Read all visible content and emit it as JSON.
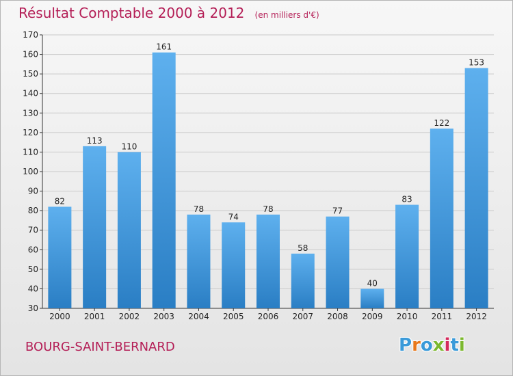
{
  "header": {
    "title": "Résultat Comptable 2000 à 2012",
    "subtitle": "(en milliers d'€)"
  },
  "footer": {
    "commune": "BOURG-SAINT-BERNARD",
    "logo_letters": [
      "P",
      "r",
      "o",
      "x",
      "i",
      "t",
      "i"
    ],
    "logo_colors": [
      "#3a9ad9",
      "#e8771a",
      "#3a9ad9",
      "#7cb82f",
      "#d42a5c",
      "#3a9ad9",
      "#7cb82f"
    ]
  },
  "colors": {
    "title": "#b41e56",
    "bar_top": "#5eb0ee",
    "bar_bottom": "#2a7ec4",
    "grid": "#c9c9c9"
  },
  "chart_data": {
    "type": "bar",
    "title": "Résultat Comptable 2000 à 2012",
    "subtitle": "(en milliers d'€)",
    "categories": [
      "2000",
      "2001",
      "2002",
      "2003",
      "2004",
      "2005",
      "2006",
      "2007",
      "2008",
      "2009",
      "2010",
      "2011",
      "2012"
    ],
    "values": [
      82,
      113,
      110,
      161,
      78,
      74,
      78,
      58,
      77,
      40,
      83,
      122,
      153
    ],
    "data_labels": [
      "82",
      "113",
      "110",
      "161",
      "78",
      "74",
      "78",
      "58",
      "77",
      "40",
      "83",
      "122",
      "153"
    ],
    "xlabel": "",
    "ylabel": "",
    "ylim": [
      30,
      170
    ],
    "yticks": [
      30,
      40,
      50,
      60,
      70,
      80,
      90,
      100,
      110,
      120,
      130,
      140,
      150,
      160,
      170
    ],
    "grid": true
  }
}
